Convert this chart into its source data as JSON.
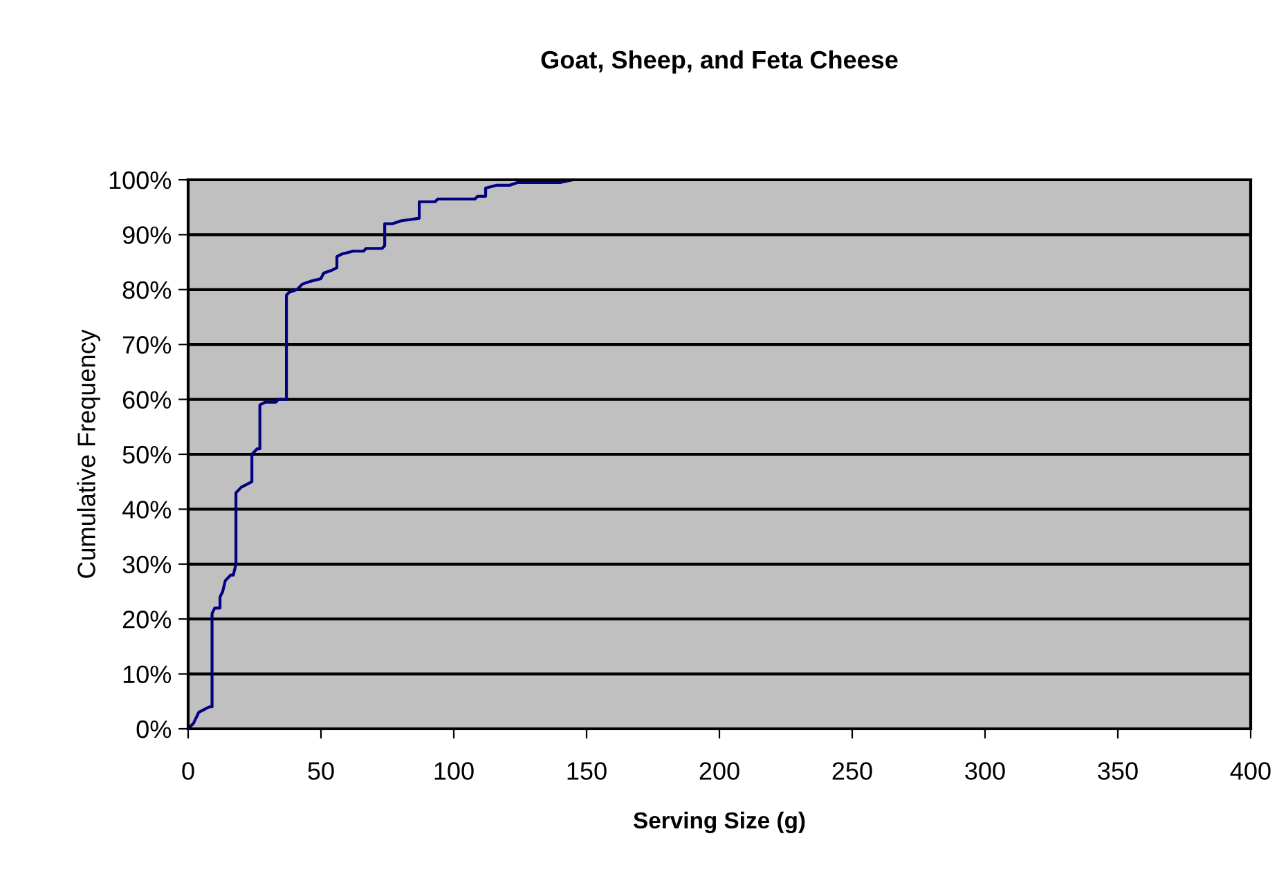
{
  "chart_data": {
    "type": "line",
    "title": "Goat, Sheep, and Feta Cheese",
    "xlabel": "Serving Size (g)",
    "ylabel": "Cumulative Frequency",
    "xlim": [
      0,
      400
    ],
    "xticks": [
      0,
      50,
      100,
      150,
      200,
      250,
      300,
      350,
      400
    ],
    "ylim": [
      0,
      100
    ],
    "yticks": [
      {
        "value": 0,
        "label": "0%"
      },
      {
        "value": 10,
        "label": "10%"
      },
      {
        "value": 20,
        "label": "20%"
      },
      {
        "value": 30,
        "label": "30%"
      },
      {
        "value": 40,
        "label": "40%"
      },
      {
        "value": 50,
        "label": "50%"
      },
      {
        "value": 60,
        "label": "60%"
      },
      {
        "value": 70,
        "label": "70%"
      },
      {
        "value": 80,
        "label": "80%"
      },
      {
        "value": 90,
        "label": "90%"
      },
      {
        "value": 100,
        "label": "100%"
      }
    ],
    "grid": "y",
    "marker": "none",
    "line_style": "solid",
    "series": [
      {
        "color": "#000080",
        "x": [
          0,
          2,
          3,
          4,
          6,
          8,
          9,
          9,
          10,
          12,
          12,
          13,
          14,
          16,
          17,
          18,
          18,
          20,
          22,
          24,
          24,
          26,
          27,
          27,
          29,
          33,
          34,
          37,
          37,
          38,
          41,
          43,
          46,
          50,
          51,
          54,
          56,
          56,
          58,
          62,
          66,
          67,
          73,
          74,
          74,
          77,
          80,
          87,
          87,
          93,
          94,
          108,
          109,
          112,
          112,
          116,
          121,
          124,
          140,
          145
        ],
        "values": [
          0,
          1,
          2,
          3,
          3.5,
          4,
          4,
          21,
          22,
          22,
          24,
          25,
          27,
          28,
          28,
          30,
          43,
          44,
          44.5,
          45,
          50,
          51,
          51,
          59,
          59.5,
          59.5,
          60,
          60,
          79,
          79.5,
          80,
          81,
          81.5,
          82,
          83,
          83.5,
          84,
          86,
          86.5,
          87,
          87,
          87.5,
          87.5,
          88,
          92,
          92,
          92.5,
          93,
          96,
          96,
          96.5,
          96.5,
          97,
          97,
          98.5,
          99,
          99,
          99.5,
          99.5,
          100
        ]
      }
    ]
  }
}
